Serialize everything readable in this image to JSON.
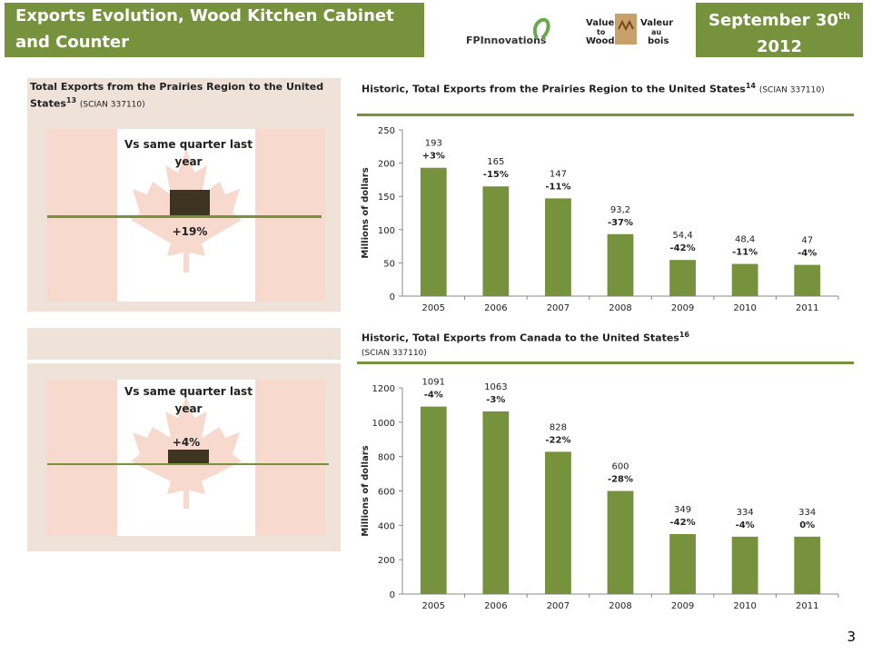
{
  "header": {
    "title": "Exports Evolution, Wood Kitchen Cabinet and Counter",
    "date_line1": "September 30",
    "date_sup": "th",
    "date_line2": "2012"
  },
  "logos": {
    "fpinnovations": "FPInnovations",
    "value_to_wood_1": "Value",
    "value_to_wood_2": "to",
    "value_to_wood_3": "Wood",
    "valeur_au_bois_1": "Valeur",
    "valeur_au_bois_2": "au",
    "valeur_au_bois_3": "bois"
  },
  "left_top": {
    "title": "Total Exports from the Prairies Region to the United States",
    "sup": "13",
    "code": "(SCIAN 337110)",
    "indicator_label": "Vs same quarter last year",
    "indicator_value": "+19%",
    "indicator_change": 19
  },
  "left_bottom": {
    "indicator_label": "Vs same quarter last year",
    "indicator_value": "+4%",
    "indicator_change": 4
  },
  "page_number": "3",
  "colors": {
    "accent": "#76923c",
    "flag_red": "#f7d9ce",
    "panel": "#efe2d9",
    "indicator": "#3d3520"
  },
  "chart_data": [
    {
      "type": "bar",
      "title": "Historic, Total Exports from the Prairies Region to the United States",
      "title_sup": "14",
      "title_code": "(SCIAN 337110)",
      "ylabel": "Millions of dollars",
      "categories": [
        "2005",
        "2006",
        "2007",
        "2008",
        "2009",
        "2010",
        "2011"
      ],
      "values": [
        193,
        165,
        147,
        93.2,
        54.4,
        48.4,
        47
      ],
      "value_labels": [
        "193",
        "165",
        "147",
        "93,2",
        "54,4",
        "48,4",
        "47"
      ],
      "change_labels": [
        "+3%",
        "-15%",
        "-11%",
        "-37%",
        "-42%",
        "-11%",
        "-4%"
      ],
      "ylim": [
        0,
        250
      ],
      "yticks": [
        "0",
        "50",
        "100",
        "150",
        "200",
        "250"
      ],
      "color": "#76923c"
    },
    {
      "type": "bar",
      "title": "Historic, Total Exports from Canada to the United States",
      "title_sup": "16",
      "title_code": "(SCIAN 337110)",
      "ylabel": "Millions of dollars",
      "categories": [
        "2005",
        "2006",
        "2007",
        "2008",
        "2009",
        "2010",
        "2011"
      ],
      "values": [
        1091,
        1063,
        828,
        600,
        349,
        334,
        334
      ],
      "value_labels": [
        "1091",
        "1063",
        "828",
        "600",
        "349",
        "334",
        "334"
      ],
      "change_labels": [
        "-4%",
        "-3%",
        "-22%",
        "-28%",
        "-42%",
        "-4%",
        "0%"
      ],
      "ylim": [
        0,
        1200
      ],
      "yticks": [
        "0",
        "200",
        "400",
        "600",
        "800",
        "1000",
        "1200"
      ],
      "color": "#76923c"
    }
  ]
}
